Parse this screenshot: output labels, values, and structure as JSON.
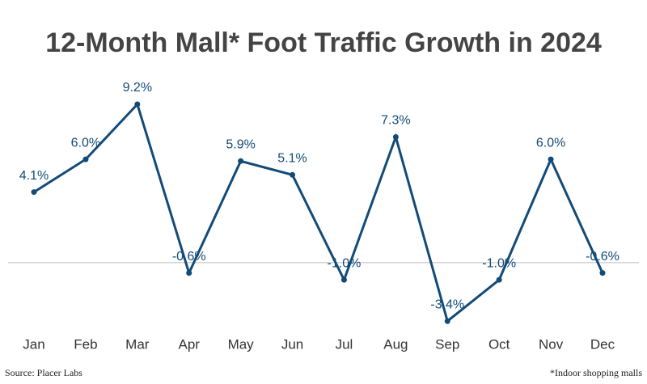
{
  "chart_data": {
    "type": "line",
    "title": "12-Month Mall* Foot Traffic Growth in 2024",
    "categories": [
      "Jan",
      "Feb",
      "Mar",
      "Apr",
      "May",
      "Jun",
      "Jul",
      "Aug",
      "Sep",
      "Oct",
      "Nov",
      "Dec"
    ],
    "values": [
      4.1,
      6.0,
      9.2,
      -0.6,
      5.9,
      5.1,
      -1.0,
      7.3,
      -3.4,
      -1.0,
      6.0,
      -0.6
    ],
    "value_labels": [
      "4.1%",
      "6.0%",
      "9.2%",
      "-0.6%",
      "5.9%",
      "5.1%",
      "-1.0%",
      "7.3%",
      "-3.4%",
      "-1.0%",
      "6.0%",
      "-0.6%"
    ],
    "color": "#124b78",
    "ylim": [
      -4,
      10
    ],
    "source": "Source: Placer Labs",
    "note": "*Indoor shopping malls"
  }
}
